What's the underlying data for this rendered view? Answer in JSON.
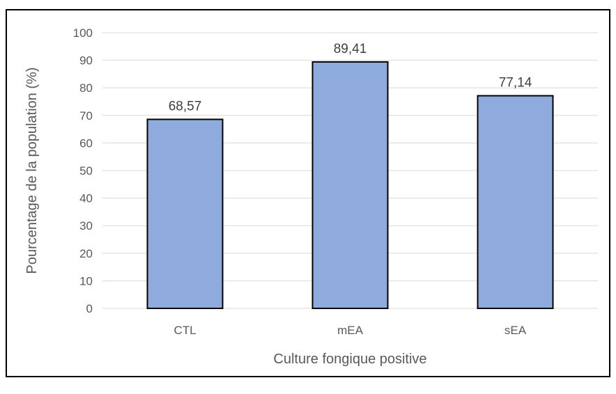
{
  "chart_data": {
    "type": "bar",
    "categories": [
      "CTL",
      "mEA",
      "sEA"
    ],
    "values": [
      68.57,
      89.41,
      77.14
    ],
    "data_labels": [
      "68,57",
      "89,41",
      "77,14"
    ],
    "xlabel": "Culture fongique positive",
    "ylabel": "Pourcentage de la population (%)",
    "ylim": [
      0,
      100
    ],
    "yticks": [
      0,
      10,
      20,
      30,
      40,
      50,
      60,
      70,
      80,
      90,
      100
    ],
    "grid": true,
    "legend": false,
    "bar_color": "#8faadc",
    "bar_edge_color": "#000000",
    "grid_color": "#d9d9d9"
  }
}
